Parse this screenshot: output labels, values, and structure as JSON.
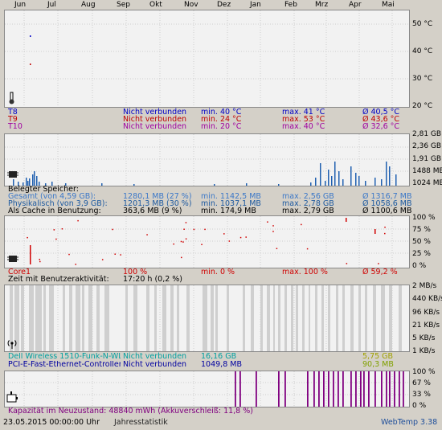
{
  "months": [
    "Jun",
    "Jul",
    "Aug",
    "Sep",
    "Okt",
    "Nov",
    "Dez",
    "Jan",
    "Feb",
    "Mrz",
    "Apr",
    "Mai"
  ],
  "temperature": {
    "ticks": [
      "50 °C",
      "40 °C",
      "30 °C",
      "20 °C"
    ],
    "rows": [
      {
        "name": "T8",
        "status": "Nicht verbunden",
        "min": "min. 40 °C",
        "max": "max. 41 °C",
        "avg": "Ø 40,5 °C",
        "color": "#0000c8"
      },
      {
        "name": "T9",
        "status": "Nicht verbunden",
        "min": "min. 24 °C",
        "max": "max. 53 °C",
        "avg": "Ø 43,6 °C",
        "color": "#c00000"
      },
      {
        "name": "T10",
        "status": "Nicht verbunden",
        "min": "min. 20 °C",
        "max": "max. 40 °C",
        "avg": "Ø 32,6 °C",
        "color": "#a000a0"
      }
    ]
  },
  "memory": {
    "ticks": [
      "2,81 GB",
      "2,36 GB",
      "1,91 GB",
      "1488 MB",
      "1024 MB"
    ],
    "heading": "Belegter Speicher:",
    "rows": [
      {
        "name": "Gesamt (von 4,59 GB):",
        "value": "1280,1 MB (27 %)",
        "min": "min. 1142,5 MB",
        "max": "max. 2,56 GB",
        "avg": "Ø 1316,7 MB",
        "color": "#3c78c8"
      },
      {
        "name": "Physikalisch (von 3,9 GB):",
        "value": "1201,3 MB (30 %)",
        "min": "min. 1037,1 MB",
        "max": "max. 2,78 GB",
        "avg": "Ø 1058,6 MB",
        "color": "#1e5aa0"
      },
      {
        "name": "Als Cache in Benutzung:",
        "value": "363,6 MB (9 %)",
        "min": "min. 174,9 MB",
        "max": "max. 2,79 GB",
        "avg": "Ø 1100,6 MB",
        "color": "#000000"
      }
    ]
  },
  "cpu": {
    "ticks": [
      "100 %",
      "75 %",
      "50 %",
      "25 %",
      "0 %"
    ],
    "row": {
      "name": "Core1",
      "value": "100 %",
      "min": "min. 0 %",
      "max": "max. 100 %",
      "avg": "Ø 59,2 %",
      "color": "#d00000"
    },
    "activity_label": "Zeit mit Benutzeraktivität:",
    "activity_value": "17:20 h (0,2 %)"
  },
  "network": {
    "ticks": [
      "2 MB/s",
      "440 KB/s",
      "96 KB/s",
      "21 KB/s",
      "5 KB/s",
      "1 KB/s"
    ],
    "rows": [
      {
        "name": "Dell Wireless 1510-Funk-N-WLAN",
        "status": "Nicht verbunden",
        "total": "16,16 GB",
        "extra": "5,75 GB",
        "color": "#00a0a0",
        "extra_color": "#a0a000"
      },
      {
        "name": "PCI-E-Fast-Ethernet-Controller Q",
        "status": "Nicht verbunden",
        "total": "1049,8 MB",
        "extra": "90,3 MB",
        "color": "#0000a0",
        "extra_color": "#80a000"
      }
    ]
  },
  "battery": {
    "ticks": [
      "100 %",
      "67 %",
      "33 %",
      "0 %"
    ],
    "capacity_text": "Kapazität im Neuzustand: 48840 mWh (Akkuverschleiß: 11,8 %)",
    "color": "#800080"
  },
  "status": {
    "datetime": "23.05.2015 00:00:00 Uhr",
    "mode": "Jahresstatistik",
    "app": "WebTemp 3.38"
  }
}
